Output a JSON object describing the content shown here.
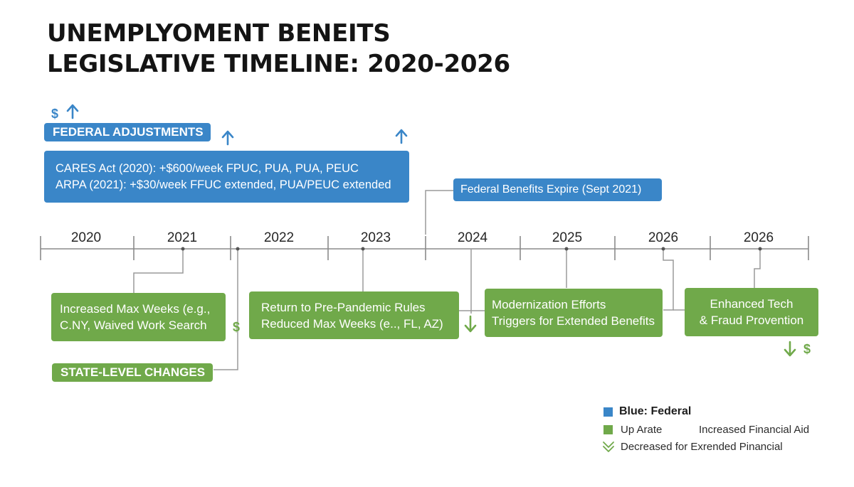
{
  "title_lines": [
    "UNEMPLYOMENT BENEITS",
    "LEGISLATIVE TIMELINE: 2020-2026"
  ],
  "timeline": {
    "years": [
      "2020",
      "2021",
      "2022",
      "2023",
      "2024",
      "2025",
      "2026",
      "2026"
    ]
  },
  "federal": {
    "header": "FEDERAL ADJUSTMENTS",
    "acts_lines": [
      "CARES Act (2020): +$600/week FPUC, PUA, PUA, PEUC",
      "ARPA (2021): +$30/week FFUC extended, PUA/PEUC extended"
    ],
    "expire_label": "Federal Benefits Expire (Sept 2021)"
  },
  "state": {
    "header": "STATE-LEVEL CHANGES",
    "boxes": [
      {
        "lines": [
          "Increased Max Weeks (e.g.,",
          "C.NY,  Waived Work Search"
        ]
      },
      {
        "lines": [
          "Return to Pre-Pandemic Rules",
          "Reduced Max Weeks (e.., FL, AZ)"
        ]
      },
      {
        "lines": [
          "Modernization Efforts",
          "Triggers for Extended Benefits"
        ]
      },
      {
        "lines": [
          "Enhanced Tech",
          "& Fraud Provention"
        ]
      }
    ]
  },
  "glyphs": {
    "dollar": "$"
  },
  "legend": {
    "federal": "Blue: Federal",
    "up": "Up Arate",
    "increased": "Increased Financial Aid",
    "decreased": "Decreased for Exrended Pinancial"
  },
  "colors": {
    "federal_blue": "#3a86c8",
    "state_green": "#70a94a",
    "axis": "#8a8a8a",
    "connector": "#9a9a9a"
  },
  "icons": [
    "up-arrow-icon",
    "down-arrow-icon",
    "double-chevron-down-icon",
    "dollar-icon"
  ]
}
